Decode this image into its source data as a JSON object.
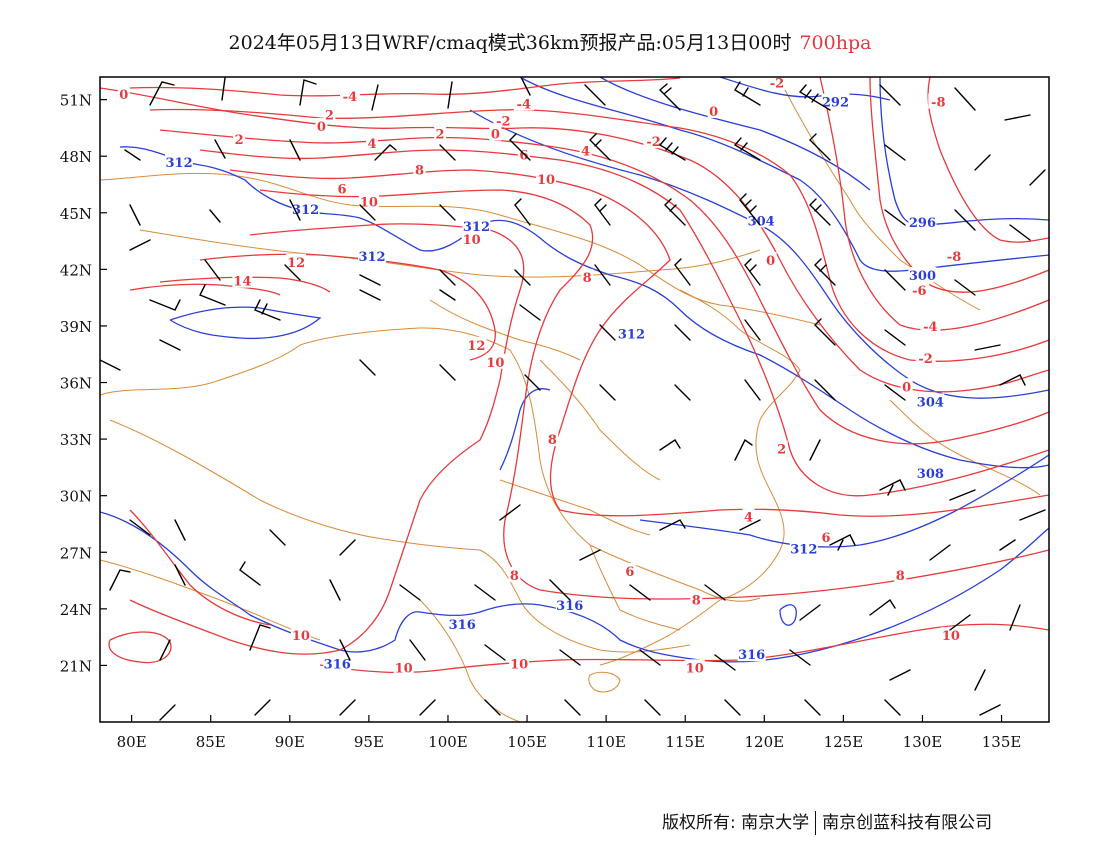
{
  "title": {
    "main": "2024年05月13日WRF/cmaq模式36km预报产品:05月13日00时",
    "level": "700hpa"
  },
  "axes": {
    "lat_labels": [
      "51N",
      "48N",
      "45N",
      "42N",
      "39N",
      "36N",
      "33N",
      "30N",
      "27N",
      "24N",
      "21N"
    ],
    "lat_values": [
      51,
      48,
      45,
      42,
      39,
      36,
      33,
      30,
      27,
      24,
      21
    ],
    "lon_labels": [
      "80E",
      "85E",
      "90E",
      "95E",
      "100E",
      "105E",
      "110E",
      "115E",
      "120E",
      "125E",
      "130E",
      "135E"
    ],
    "lon_values": [
      80,
      85,
      90,
      95,
      100,
      105,
      110,
      115,
      120,
      125,
      130,
      135
    ],
    "lon_range": [
      78,
      138
    ],
    "lat_range": [
      18,
      52.2
    ]
  },
  "colors": {
    "temperature": "#e8393c",
    "height": "#2a3fd8",
    "border": "#d98c3a",
    "wind": "#000000",
    "frame": "#000000"
  },
  "height_labels": [
    {
      "text": "292",
      "lon": 124.5,
      "lat": 50.9
    },
    {
      "text": "312",
      "lon": 83.0,
      "lat": 47.7
    },
    {
      "text": "312",
      "lon": 91.0,
      "lat": 45.2
    },
    {
      "text": "312",
      "lon": 101.8,
      "lat": 44.3
    },
    {
      "text": "312",
      "lon": 95.2,
      "lat": 42.7
    },
    {
      "text": "304",
      "lon": 119.8,
      "lat": 44.6
    },
    {
      "text": "296",
      "lon": 130.0,
      "lat": 44.5
    },
    {
      "text": "300",
      "lon": 130.0,
      "lat": 41.7
    },
    {
      "text": "312",
      "lon": 111.6,
      "lat": 38.6
    },
    {
      "text": "304",
      "lon": 130.5,
      "lat": 35.0
    },
    {
      "text": "308",
      "lon": 130.5,
      "lat": 31.2
    },
    {
      "text": "312",
      "lon": 122.5,
      "lat": 27.2
    },
    {
      "text": "316",
      "lon": 107.7,
      "lat": 24.2
    },
    {
      "text": "316",
      "lon": 100.9,
      "lat": 23.2
    },
    {
      "text": "316",
      "lon": 93.0,
      "lat": 21.1
    },
    {
      "text": "316",
      "lon": 119.2,
      "lat": 21.6
    }
  ],
  "temp_labels": [
    {
      "text": "0",
      "lon": 79.5,
      "lat": 51.3
    },
    {
      "text": "-4",
      "lon": 93.8,
      "lat": 51.2
    },
    {
      "text": "-4",
      "lon": 104.8,
      "lat": 50.8
    },
    {
      "text": "-2",
      "lon": 120.8,
      "lat": 51.9
    },
    {
      "text": "-8",
      "lon": 131.0,
      "lat": 50.9
    },
    {
      "text": "0",
      "lon": 92.0,
      "lat": 49.6
    },
    {
      "text": "2",
      "lon": 92.5,
      "lat": 50.2
    },
    {
      "text": "-2",
      "lon": 103.5,
      "lat": 49.9
    },
    {
      "text": "0",
      "lon": 103.0,
      "lat": 49.2
    },
    {
      "text": "0",
      "lon": 116.8,
      "lat": 50.4
    },
    {
      "text": "2",
      "lon": 86.8,
      "lat": 48.9
    },
    {
      "text": "4",
      "lon": 95.2,
      "lat": 48.7
    },
    {
      "text": "2",
      "lon": 99.5,
      "lat": 49.2
    },
    {
      "text": "-2",
      "lon": 113.0,
      "lat": 48.8
    },
    {
      "text": "6",
      "lon": 104.8,
      "lat": 48.1
    },
    {
      "text": "4",
      "lon": 108.7,
      "lat": 48.3
    },
    {
      "text": "8",
      "lon": 98.2,
      "lat": 47.3
    },
    {
      "text": "6",
      "lon": 93.3,
      "lat": 46.3
    },
    {
      "text": "10",
      "lon": 106.2,
      "lat": 46.8
    },
    {
      "text": "10",
      "lon": 95.0,
      "lat": 45.6
    },
    {
      "text": "10",
      "lon": 101.5,
      "lat": 43.6
    },
    {
      "text": "12",
      "lon": 90.4,
      "lat": 42.4
    },
    {
      "text": "14",
      "lon": 87.0,
      "lat": 41.4
    },
    {
      "text": "8",
      "lon": 108.8,
      "lat": 41.6
    },
    {
      "text": "0",
      "lon": 120.4,
      "lat": 42.5
    },
    {
      "text": "-8",
      "lon": 132.0,
      "lat": 42.7
    },
    {
      "text": "-6",
      "lon": 129.8,
      "lat": 40.9
    },
    {
      "text": "-4",
      "lon": 130.5,
      "lat": 39.0
    },
    {
      "text": "-2",
      "lon": 130.2,
      "lat": 37.3
    },
    {
      "text": "0",
      "lon": 129.0,
      "lat": 35.8
    },
    {
      "text": "12",
      "lon": 101.8,
      "lat": 38.0
    },
    {
      "text": "10",
      "lon": 103.0,
      "lat": 37.1
    },
    {
      "text": "8",
      "lon": 106.6,
      "lat": 33.0
    },
    {
      "text": "2",
      "lon": 121.1,
      "lat": 32.5
    },
    {
      "text": "4",
      "lon": 119.0,
      "lat": 28.9
    },
    {
      "text": "6",
      "lon": 123.9,
      "lat": 27.8
    },
    {
      "text": "8",
      "lon": 104.2,
      "lat": 25.8
    },
    {
      "text": "6",
      "lon": 111.5,
      "lat": 26.0
    },
    {
      "text": "8",
      "lon": 128.6,
      "lat": 25.8
    },
    {
      "text": "8",
      "lon": 115.7,
      "lat": 24.5
    },
    {
      "text": "10",
      "lon": 90.7,
      "lat": 22.6
    },
    {
      "text": "10",
      "lon": 97.2,
      "lat": 20.9
    },
    {
      "text": "10",
      "lon": 104.5,
      "lat": 21.1
    },
    {
      "text": "10",
      "lon": 115.6,
      "lat": 20.9
    },
    {
      "text": "10",
      "lon": 131.8,
      "lat": 22.6
    }
  ],
  "footer": {
    "left": "版权所有: 南京大学",
    "right": "南京创蓝科技有限公司"
  }
}
